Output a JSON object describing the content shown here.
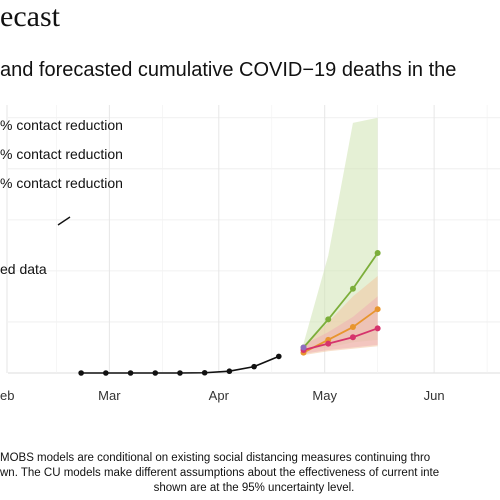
{
  "page": {
    "title": "ecast",
    "subtitle": "and forecasted cumulative COVID−19 deaths in the",
    "footnote": [
      "MOBS models are conditional on existing social distancing measures continuing thro",
      "wn. The CU models make different assumptions about the effectiveness of current inte",
      "shown are at the 95% uncertainty level."
    ]
  },
  "chart_data": {
    "type": "line",
    "title": "",
    "xlabel": "",
    "ylabel": "",
    "x_ticks": [
      "eb",
      "Mar",
      "Apr",
      "May",
      "Jun"
    ],
    "grid": true,
    "legend_placement": "top-left",
    "legend": [
      {
        "label": "% contact reduction",
        "color": "#7cae3a"
      },
      {
        "label": "% contact reduction",
        "color": "#e8952e"
      },
      {
        "label": "% contact reduction",
        "color": "#d6336c"
      },
      {
        "label": "ed data",
        "color": "#111111"
      }
    ],
    "observed": {
      "name": "ed data",
      "color": "#111111",
      "x": [
        "2020-02-22",
        "2020-02-29",
        "2020-03-07",
        "2020-03-14",
        "2020-03-21",
        "2020-03-28",
        "2020-04-04",
        "2020-04-11",
        "2020-04-18"
      ],
      "y": [
        0.0,
        0.0,
        0.0,
        0.0,
        0.0,
        0.1,
        0.7,
        2.5,
        6.5
      ]
    },
    "series": [
      {
        "color": "#7cae3a",
        "band_color": "#cfe3b3",
        "x": [
          "2020-04-25",
          "2020-05-02",
          "2020-05-09",
          "2020-05-16"
        ],
        "y": [
          10.0,
          21.0,
          33.0,
          47.0
        ],
        "lower": [
          9.0,
          10.0,
          12.0,
          13.0
        ],
        "upper": [
          11.5,
          46.0,
          98.0,
          100.0
        ]
      },
      {
        "color": "#e8952e",
        "band_color": "#f3c7a3",
        "x": [
          "2020-04-25",
          "2020-05-02",
          "2020-05-09",
          "2020-05-16"
        ],
        "y": [
          8.0,
          13.0,
          18.0,
          25.0
        ],
        "lower": [
          7.0,
          8.5,
          9.5,
          10.5
        ],
        "upper": [
          10.0,
          20.0,
          30.0,
          38.0
        ]
      },
      {
        "color": "#d6336c",
        "band_color": "#eeb0b5",
        "x": [
          "2020-04-25",
          "2020-05-02",
          "2020-05-09",
          "2020-05-16"
        ],
        "y": [
          9.0,
          11.5,
          14.0,
          17.5
        ],
        "lower": [
          7.5,
          9.0,
          10.0,
          11.0
        ],
        "upper": [
          11.0,
          16.0,
          22.0,
          30.0
        ]
      },
      {
        "color": "#8e6bbf",
        "band_color": "#d9c8ec",
        "x": [
          "2020-04-25"
        ],
        "y": [
          10.0
        ],
        "lower": [
          9.0
        ],
        "upper": [
          11.0
        ]
      }
    ]
  }
}
